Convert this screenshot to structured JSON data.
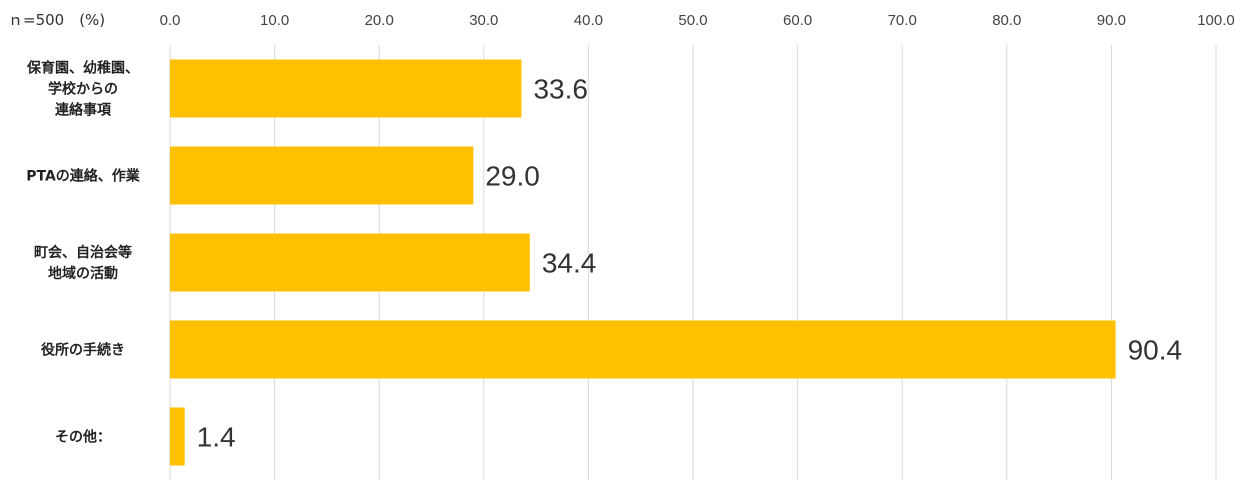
{
  "chart_data": {
    "type": "bar",
    "orientation": "horizontal",
    "sample_label": "ｎ=500　(%)",
    "categories": [
      [
        "保育園、幼稚園、",
        "学校からの",
        "連絡事項"
      ],
      [
        "PTAの連絡、作業"
      ],
      [
        "町会、自治会等",
        "地域の活動"
      ],
      [
        "役所の手続き"
      ],
      [
        "その他："
      ]
    ],
    "values": [
      33.6,
      29.0,
      34.4,
      90.4,
      1.4
    ],
    "value_labels": [
      "33.6",
      "29.0",
      "34.4",
      "90.4",
      "1.4"
    ],
    "xlim": [
      0,
      100
    ],
    "x_ticks": [
      "0.0",
      "10.0",
      "20.0",
      "30.0",
      "40.0",
      "50.0",
      "60.0",
      "70.0",
      "80.0",
      "90.0",
      "100.0"
    ],
    "tick_position": "top",
    "grid": true,
    "legend": "none",
    "colors": {
      "bar": "#FFC000",
      "grid": "#D9D9D9"
    }
  }
}
